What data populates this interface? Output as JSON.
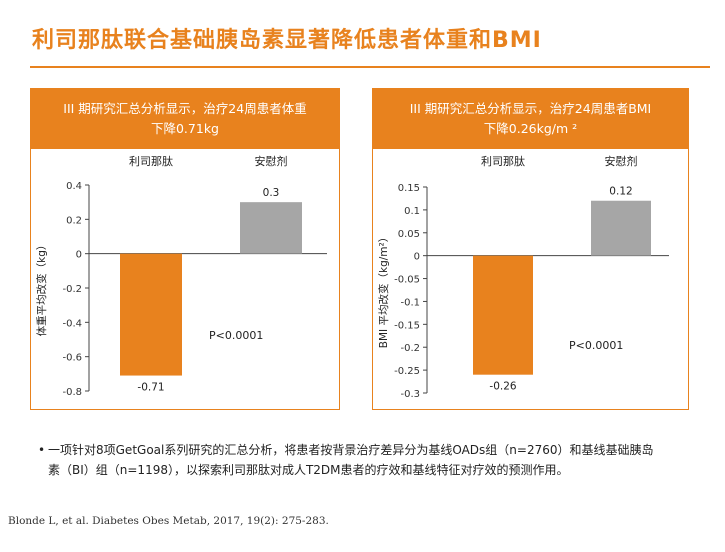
{
  "title": "利司那肽联合基础胰岛素显著降低患者体重和BMI",
  "accent_color": "#e8821e",
  "placebo_color": "#a6a6a6",
  "chart_data": [
    {
      "type": "bar",
      "header": {
        "line1": "III 期研究汇总分析显示，治疗24周患者体重",
        "line2": "下降0.71kg"
      },
      "categories": [
        "利司那肽",
        "安慰剂"
      ],
      "values": [
        -0.71,
        0.3
      ],
      "value_labels": [
        "-0.71",
        "0.3"
      ],
      "ylabel": "体重平均改变（kg）",
      "ylim": [
        -0.8,
        0.4
      ],
      "yticks": [
        0.4,
        0.2,
        0,
        -0.2,
        -0.4,
        -0.6,
        -0.8
      ],
      "ytick_labels": [
        "0.4",
        "0.2",
        "0",
        "-0.2",
        "-0.4",
        "-0.6",
        "-0.8"
      ],
      "annotation": "P<0.0001",
      "grid": false
    },
    {
      "type": "bar",
      "header": {
        "line1": "III 期研究汇总分析显示，治疗24周患者BMI",
        "line2": "下降0.26kg/m ²"
      },
      "categories": [
        "利司那肽",
        "安慰剂"
      ],
      "values": [
        -0.26,
        0.12
      ],
      "value_labels": [
        "-0.26",
        "0.12"
      ],
      "ylabel": "BMI 平均改变（kg/m²）",
      "ylim": [
        -0.3,
        0.15
      ],
      "yticks": [
        0.15,
        0.1,
        0.05,
        0,
        -0.05,
        -0.1,
        -0.15,
        -0.2,
        -0.25,
        -0.3
      ],
      "ytick_labels": [
        "0.15",
        "0.1",
        "0.05",
        "0",
        "-0.05",
        "-0.1",
        "-0.15",
        "-0.2",
        "-0.25",
        "-0.3"
      ],
      "annotation": "P<0.0001",
      "grid": false
    }
  ],
  "note": {
    "bullet": "•",
    "line1": "一项针对8项GetGoal系列研究的汇总分析，将患者按背景治疗差异分为基线OADs组（n=2760）和基线基础胰岛",
    "line2": "素（BI）组（n=1198），以探索利司那肽对成人T2DM患者的疗效和基线特征对疗效的预测作用。"
  },
  "reference": "Blonde L, et al. Diabetes Obes Metab, 2017, 19(2): 275-283."
}
